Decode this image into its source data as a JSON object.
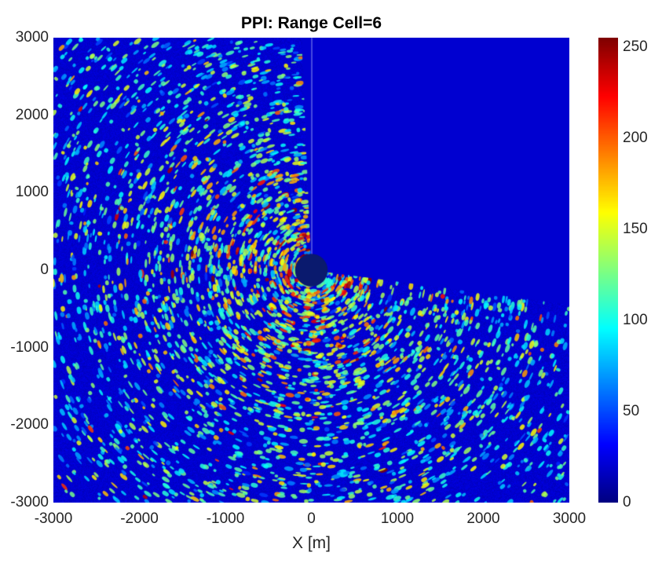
{
  "chart_data": {
    "type": "heatmap",
    "title": "PPI: Range Cell=6",
    "xlabel": "X [m]",
    "ylabel": "",
    "xlim": [
      -3000,
      3000
    ],
    "ylim": [
      -3000,
      3000
    ],
    "xticks": [
      "-3000",
      "-2000",
      "-1000",
      "0",
      "1000",
      "2000",
      "3000"
    ],
    "yticks": [
      "3000",
      "2000",
      "1000",
      "0",
      "-1000",
      "-2000",
      "-3000"
    ],
    "colormap": "jet",
    "clim": [
      0,
      255
    ],
    "colorbar_ticks": [
      "250",
      "200",
      "150",
      "100",
      "50",
      "0"
    ],
    "blank_sector_azimuth_deg": [
      357.6,
      97.7
    ],
    "blank_center_radius_m": 190,
    "description_values": {
      "peak_intensity_near_center": 240,
      "typical_clutter": 80,
      "noise_floor": 15
    }
  }
}
